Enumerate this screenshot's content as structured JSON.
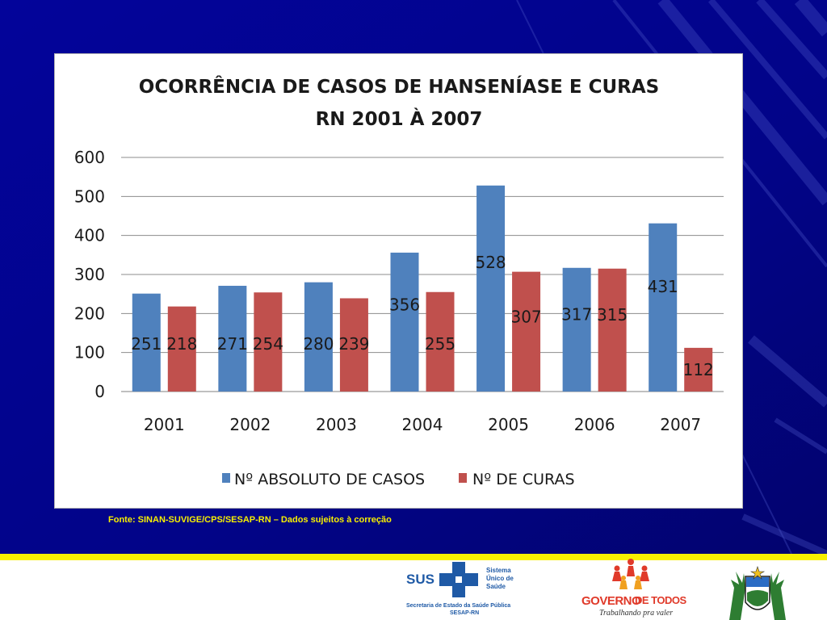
{
  "background": {
    "base": "#03048f",
    "dark": "#02026a"
  },
  "chart_data": {
    "type": "bar",
    "title": "OCORRÊNCIA DE CASOS DE HANSENÍASE  E CURAS",
    "subtitle": "RN 2001 À 2007",
    "categories": [
      "2001",
      "2002",
      "2003",
      "2004",
      "2005",
      "2006",
      "2007"
    ],
    "series": [
      {
        "name": "Nº ABSOLUTO DE CASOS",
        "color": "#4f81bd",
        "values": [
          251,
          271,
          280,
          356,
          528,
          317,
          431
        ]
      },
      {
        "name": "Nº  DE  CURAS",
        "color": "#c0504d",
        "values": [
          218,
          254,
          239,
          255,
          307,
          315,
          112
        ]
      }
    ],
    "yticks": [
      "0",
      "100",
      "200",
      "300",
      "400",
      "500",
      "600"
    ],
    "ylim": [
      0,
      600
    ],
    "grid": true,
    "legend_position": "bottom"
  },
  "source_note": "Fonte: SINAN-SUVIGE/CPS/SESAP-RN – Dados sujeitos à correção",
  "footer": {
    "sus": {
      "abbr": "SUS",
      "name_line1": "Sistema",
      "name_line2": "Único de",
      "name_line3": "Saúde",
      "dept_line1": "Secretaria de Estado da Saúde Pública",
      "dept_line2": "SESAP-RN"
    },
    "governo": {
      "part1": "GOVERNO",
      "part2": "DE TODOS",
      "slogan": "Trabalhando pra valer"
    }
  }
}
